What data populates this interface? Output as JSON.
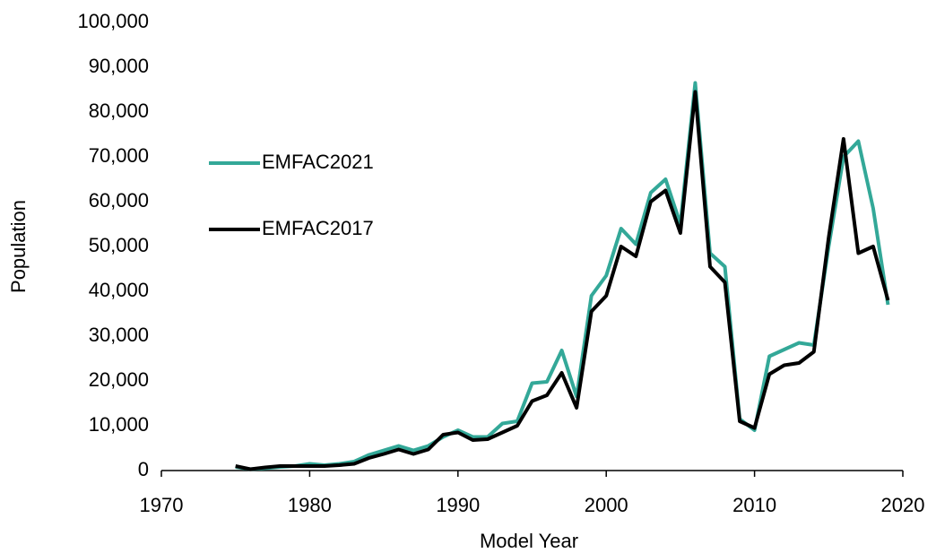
{
  "chart_data": {
    "type": "line",
    "x_label": "Model Year",
    "y_label": "Population",
    "x": [
      1975,
      1976,
      1977,
      1978,
      1979,
      1980,
      1981,
      1982,
      1983,
      1984,
      1985,
      1986,
      1987,
      1988,
      1989,
      1990,
      1991,
      1992,
      1993,
      1994,
      1995,
      1996,
      1997,
      1998,
      1999,
      2000,
      2001,
      2002,
      2003,
      2004,
      2005,
      2006,
      2007,
      2008,
      2009,
      2010,
      2011,
      2012,
      2013,
      2014,
      2015,
      2016,
      2017,
      2018,
      2019
    ],
    "series": [
      {
        "name": "EMFAC2021",
        "color": "#33a898",
        "values": [
          800,
          300,
          500,
          800,
          1000,
          1500,
          1200,
          1500,
          2000,
          3500,
          4500,
          5500,
          4500,
          5500,
          7500,
          9000,
          7500,
          7500,
          10500,
          11000,
          19500,
          19800,
          26800,
          16500,
          39000,
          43500,
          54000,
          50500,
          62000,
          65000,
          55000,
          86500,
          48500,
          45500,
          11500,
          9000,
          25500,
          27000,
          28500,
          28000,
          50000,
          70000,
          73500,
          58500,
          37000
        ]
      },
      {
        "name": "EMFAC2017",
        "color": "#000000",
        "values": [
          1000,
          300,
          700,
          1000,
          1000,
          1000,
          1000,
          1200,
          1500,
          2800,
          3700,
          4700,
          3700,
          4700,
          8000,
          8500,
          6800,
          7000,
          8500,
          10000,
          15500,
          16800,
          21800,
          14000,
          35500,
          39000,
          50000,
          47800,
          60000,
          62500,
          53000,
          84500,
          45500,
          42000,
          11000,
          9500,
          21500,
          23500,
          24000,
          26500,
          52000,
          74000,
          48500,
          50000,
          38000
        ]
      }
    ],
    "xlim": [
      1970,
      2020
    ],
    "xticks": [
      1970,
      1980,
      1990,
      2000,
      2010,
      2020
    ],
    "ylim": [
      0,
      100000
    ],
    "yticks": [
      0,
      {
        "value": 10000,
        "label": "10,000"
      },
      {
        "value": 20000,
        "label": "20,000"
      },
      {
        "value": 30000,
        "label": "30,000"
      },
      {
        "value": 40000,
        "label": "40,000"
      },
      {
        "value": 50000,
        "label": "50,000"
      },
      {
        "value": 60000,
        "label": "60,000"
      },
      {
        "value": 70000,
        "label": "70,000"
      },
      {
        "value": 80000,
        "label": "80,000"
      },
      {
        "value": 90000,
        "label": "90,000"
      },
      {
        "value": 100000,
        "label": "100,000"
      }
    ],
    "grid": false,
    "legend": "left"
  }
}
